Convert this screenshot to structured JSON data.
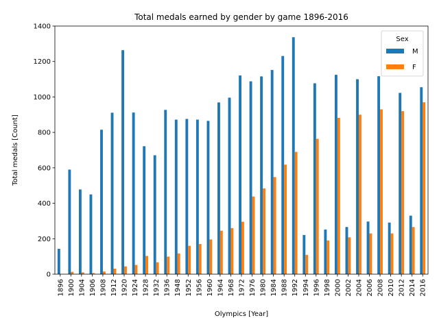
{
  "chart_data": {
    "type": "bar",
    "title": "Total medals earned by gender by game 1896-2016",
    "xlabel": "Olympics [Year]",
    "ylabel": "Total medals [Count]",
    "ylim": [
      0,
      1400
    ],
    "yticks": [
      0,
      200,
      400,
      600,
      800,
      1000,
      1200,
      1400
    ],
    "grid": false,
    "legend": {
      "title": "Sex",
      "placement": "top-right"
    },
    "categories": [
      "1896",
      "1900",
      "1904",
      "1906",
      "1908",
      "1912",
      "1920",
      "1924",
      "1928",
      "1932",
      "1936",
      "1948",
      "1952",
      "1956",
      "1960",
      "1964",
      "1968",
      "1972",
      "1976",
      "1980",
      "1984",
      "1988",
      "1992",
      "1994",
      "1996",
      "1998",
      "2000",
      "2002",
      "2004",
      "2006",
      "2008",
      "2010",
      "2012",
      "2014",
      "2016"
    ],
    "series": [
      {
        "name": "M",
        "color": "#1f77b4",
        "values": [
          143,
          590,
          478,
          450,
          815,
          911,
          1264,
          912,
          722,
          671,
          927,
          872,
          876,
          872,
          865,
          969,
          996,
          1121,
          1088,
          1116,
          1152,
          1231,
          1337,
          221,
          1077,
          252,
          1125,
          266,
          1100,
          297,
          1117,
          291,
          1023,
          330,
          1055
        ]
      },
      {
        "name": "F",
        "color": "#ff7f0e",
        "values": [
          0,
          13,
          10,
          6,
          15,
          31,
          44,
          52,
          103,
          67,
          99,
          117,
          160,
          170,
          196,
          245,
          260,
          296,
          438,
          484,
          548,
          618,
          690,
          109,
          764,
          190,
          882,
          208,
          900,
          230,
          930,
          230,
          920,
          266,
          970
        ]
      }
    ]
  }
}
